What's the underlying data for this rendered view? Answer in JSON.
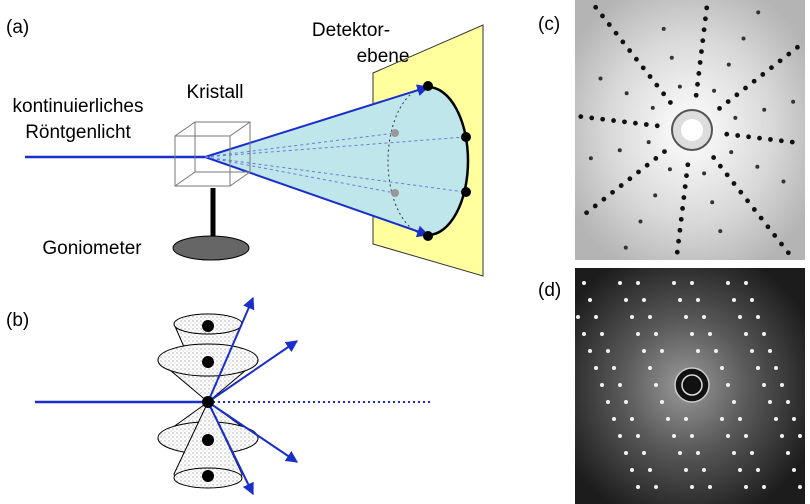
{
  "panel_a": {
    "label": "(a)",
    "detector_line1": "Detektor-",
    "detector_line2": "ebene",
    "crystal": "Kristall",
    "source_line1": "kontinuierliches",
    "source_line2": "Röntgenlicht",
    "goniometer": "Goniometer"
  },
  "panel_b": {
    "label": "(b)"
  },
  "panel_c": {
    "label": "(c)"
  },
  "panel_d": {
    "label": "(d)"
  }
}
